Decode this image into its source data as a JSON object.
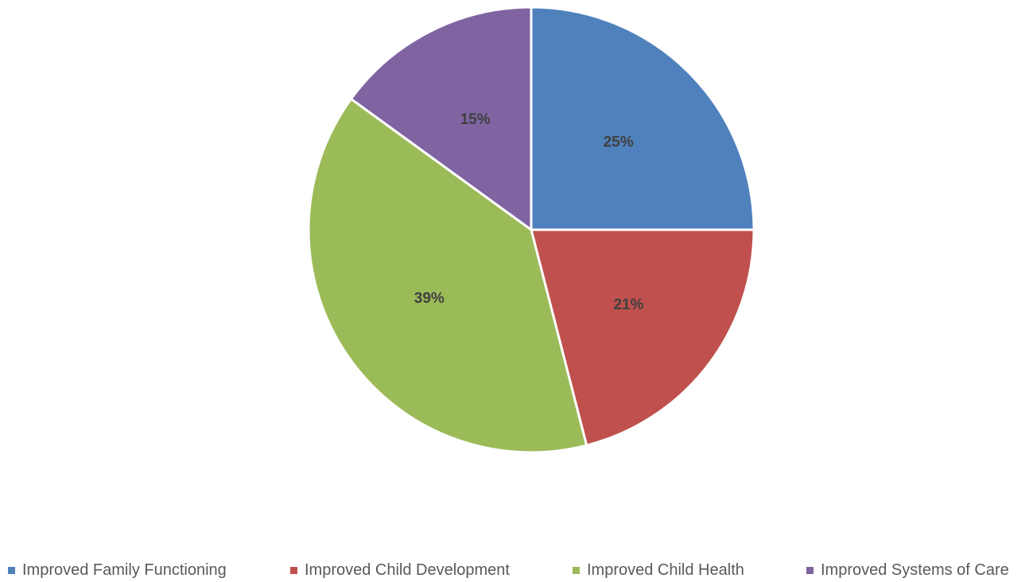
{
  "chart_data": {
    "type": "pie",
    "categories": [
      "Improved Family Functioning",
      "Improved Child Development",
      "Improved Child Health",
      "Improved Systems of Care"
    ],
    "values": [
      25,
      21,
      39,
      15
    ],
    "data_labels": [
      "25%",
      "21%",
      "39%",
      "15%"
    ],
    "colors": [
      "#4F81BD",
      "#C0504D",
      "#9BBB59",
      "#8064A2"
    ],
    "title": "",
    "legend_position": "bottom",
    "start_angle_deg": 0,
    "direction": "clockwise"
  }
}
